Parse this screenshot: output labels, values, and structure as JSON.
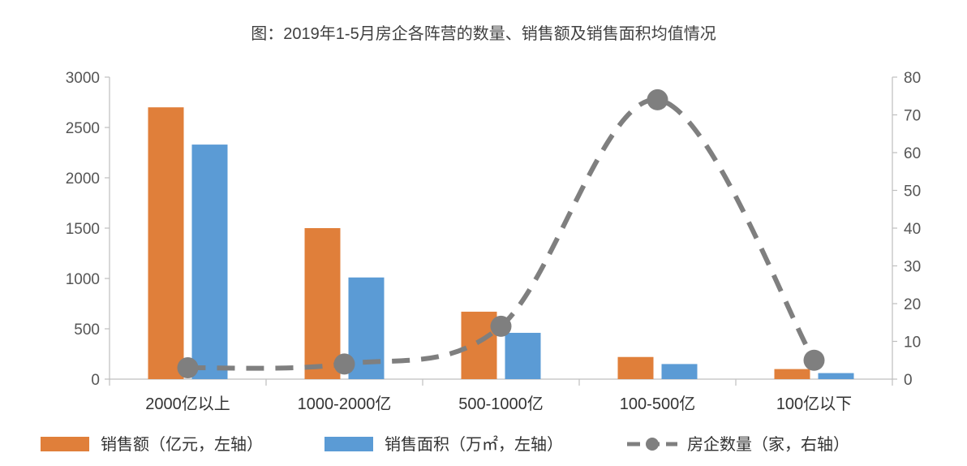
{
  "chart_data": {
    "type": "bar",
    "title": "图：2019年1-5月房企各阵营的数量、销售额及销售面积均值情况",
    "categories": [
      "2000亿以上",
      "1000-2000亿",
      "500-1000亿",
      "100-500亿",
      "100亿以下"
    ],
    "series": [
      {
        "name": "销售额（亿元，左轴）",
        "type": "bar",
        "axis": "left",
        "color": "#E07F3A",
        "values": [
          2700,
          1500,
          670,
          220,
          100
        ]
      },
      {
        "name": "销售面积（万㎡，左轴）",
        "type": "bar",
        "axis": "left",
        "color": "#5B9BD5",
        "values": [
          2330,
          1010,
          460,
          150,
          60
        ]
      },
      {
        "name": "房企数量（家，右轴）",
        "type": "line",
        "axis": "right",
        "color": "#7F7F7F",
        "dashed": true,
        "values": [
          3,
          4,
          14,
          74,
          5
        ]
      }
    ],
    "ylim_left": [
      0,
      3000
    ],
    "yticks_left": [
      0,
      500,
      1000,
      1500,
      2000,
      2500,
      3000
    ],
    "ylim_right": [
      0,
      80
    ],
    "yticks_right": [
      0,
      10,
      20,
      30,
      40,
      50,
      60,
      70,
      80
    ],
    "grid": false,
    "legend_position": "bottom"
  }
}
